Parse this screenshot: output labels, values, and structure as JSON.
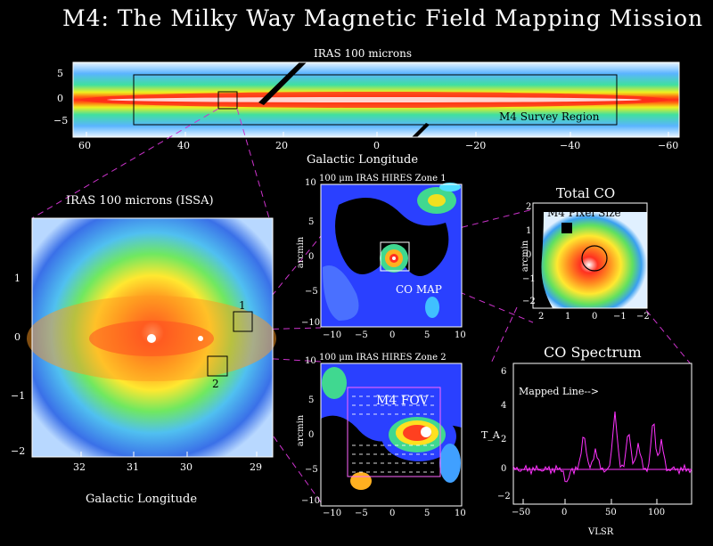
{
  "title": "M4: The Milky Way Magnetic Field Mapping Mission",
  "survey": {
    "title": "IRAS 100 microns",
    "region_label": "M4 Survey Region",
    "xlabel": "Galactic Longitude",
    "xticks": [
      "60",
      "40",
      "20",
      "0",
      "−20",
      "−40",
      "−60"
    ],
    "yticks": [
      "5",
      "0",
      "−5"
    ]
  },
  "issa": {
    "title": "IRAS 100 microns (ISSA)",
    "xlabel": "Galactic Longitude",
    "xticks": [
      "32",
      "31",
      "30",
      "29"
    ],
    "yticks": [
      "1",
      "0",
      "−1",
      "−2"
    ],
    "box1_label": "1",
    "box2_label": "2"
  },
  "zone1": {
    "title": "100 μm IRAS HIRES Zone 1",
    "ylabel": "arcmin",
    "label": "CO MAP",
    "xticks": [
      "−10",
      "−5",
      "0",
      "5",
      "10"
    ],
    "yticks": [
      "10",
      "5",
      "0",
      "−5",
      "−10"
    ]
  },
  "zone2": {
    "title": "100 μm IRAS HIRES Zone 2",
    "ylabel": "arcmin",
    "label": "M4 FOV",
    "xticks": [
      "−10",
      "−5",
      "0",
      "5",
      "10"
    ],
    "yticks": [
      "10",
      "5",
      "0",
      "−5",
      "−10"
    ]
  },
  "co": {
    "title": "Total CO",
    "ylabel": "arcmin",
    "pixel_label": "M4 Pixel Size",
    "xticks": [
      "2",
      "1",
      "0",
      "−1",
      "−2"
    ],
    "yticks": [
      "2",
      "1",
      "0",
      "−1",
      "−2"
    ]
  },
  "spectrum": {
    "title": "CO Spectrum",
    "ylabel": "T_A",
    "xlabel": "VLSR",
    "annotation": "Mapped Line-->",
    "xticks": [
      "−50",
      "0",
      "50",
      "100"
    ],
    "yticks": [
      "6",
      "4",
      "2",
      "0",
      "−2"
    ]
  }
}
